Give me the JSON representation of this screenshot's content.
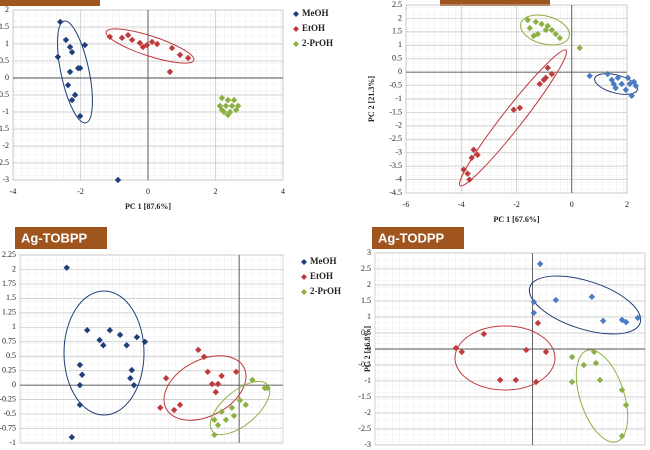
{
  "chart_data": [
    {
      "type": "scatter",
      "x_label": "PC 1 [87.6%]",
      "legend": "upper right",
      "xlim": [
        -4,
        4
      ],
      "xticks": [
        -4,
        -2,
        0,
        2,
        4
      ],
      "ylim": [
        -3,
        2
      ],
      "yticks": [
        -3,
        -2.5,
        -2,
        -1.5,
        -1,
        -0.5,
        0,
        0.5,
        1,
        1.5,
        2
      ],
      "grid": true,
      "series": [
        {
          "name": "MeOH",
          "color": "#1f3f7a",
          "x": [
            -2.6,
            -2.43,
            -2.31,
            -1.87,
            -2.67,
            -2.25,
            -2.01,
            -2.31,
            -2.07,
            -2.37,
            -2.16,
            -2.25,
            -2.01,
            -0.89
          ],
          "values": [
            1.65,
            1.12,
            0.91,
            0.97,
            0.62,
            0.76,
            0.29,
            0.18,
            0.29,
            -0.21,
            -0.5,
            -0.65,
            -1.12,
            -3
          ]
        },
        {
          "name": "EtOH",
          "color": "#c0393b",
          "x": [
            -1.13,
            -0.77,
            -0.59,
            -0.47,
            -0.24,
            -0.03,
            0.12,
            -0.15,
            0.27,
            0.71,
            0.95,
            1.19,
            0.65
          ],
          "values": [
            1.21,
            1.18,
            1.26,
            1.12,
            1.03,
            0.97,
            1.06,
            0.91,
            1,
            0.88,
            0.68,
            0.59,
            0.18
          ]
        },
        {
          "name": "2-PrOH",
          "color": "#8db043",
          "x": [
            2.19,
            2.37,
            2.55,
            2.13,
            2.31,
            2.49,
            2.67,
            2.25,
            2.43,
            2.61,
            2.37,
            2.19
          ],
          "values": [
            -0.59,
            -0.65,
            -0.65,
            -0.82,
            -0.82,
            -0.82,
            -0.82,
            -1,
            -1,
            -0.94,
            -1.09,
            -0.94
          ]
        }
      ]
    },
    {
      "type": "scatter",
      "x_label": "PC 1 [67.6%]",
      "y_label": "PC 2 [21.3%]",
      "xlim": [
        -6,
        2
      ],
      "xticks": [
        -6,
        -4,
        -2,
        0,
        2
      ],
      "ylim": [
        -4.5,
        2.5
      ],
      "yticks": [
        -4.5,
        -4,
        -3.5,
        -3,
        -2.5,
        -2,
        -1.5,
        -1,
        -0.5,
        0,
        0.5,
        1,
        1.5,
        2,
        2.5
      ],
      "grid": true,
      "series": [
        {
          "color": "#4a7cc4",
          "x": [
            0.65,
            1.3,
            1.45,
            1.67,
            1.81,
            2.03,
            2.25,
            1.59,
            1.96,
            2.17,
            2.32,
            1.52,
            2.1
          ],
          "values": [
            -0.14,
            -0.07,
            -0.29,
            -0.21,
            -0.44,
            -0.21,
            -0.36,
            -0.59,
            -0.66,
            -0.88,
            -0.51,
            -0.44,
            -0.44
          ]
        },
        {
          "color": "#c0393b",
          "x": [
            -0.87,
            -0.72,
            -0.94,
            -1.16,
            -1.01,
            -1.88,
            -2.1,
            -3.55,
            -3.62,
            -3.41,
            -3.91,
            -3.77,
            -3.7
          ],
          "values": [
            0.16,
            -0.07,
            -0.21,
            -0.44,
            -0.29,
            -1.33,
            -1.4,
            -2.89,
            -3.19,
            -3.08,
            -3.63,
            -3.78,
            -4.0
          ]
        },
        {
          "color": "#8db043",
          "x": [
            -1.59,
            -1.3,
            -1.09,
            -1.52,
            -0.94,
            -1.23,
            -0.72,
            -0.58,
            -0.43,
            -1.38,
            -0.87,
            0.29
          ],
          "values": [
            1.94,
            1.87,
            1.79,
            1.64,
            1.57,
            1.42,
            1.57,
            1.42,
            1.27,
            1.35,
            1.72,
            0.9
          ]
        }
      ]
    },
    {
      "type": "scatter",
      "title": "Ag-TOBPP",
      "legend": "upper right",
      "xlim": [
        -3,
        0.6
      ],
      "ylim": [
        -1,
        2.25
      ],
      "yticks": [
        -1,
        -0.75,
        -0.5,
        -0.25,
        0,
        0.25,
        0.5,
        0.75,
        1,
        1.25,
        1.5,
        1.75,
        2,
        2.25
      ],
      "grid": true,
      "series": [
        {
          "name": "MeOH",
          "color": "#1f3f7a",
          "x": [
            -2.36,
            -2.08,
            -1.86,
            -1.91,
            -1.77,
            -1.63,
            -1.54,
            -1.4,
            -1.29,
            -2.18,
            -2.15,
            -2.18,
            -1.47,
            -1.49,
            -1.44,
            -2.18,
            -2.29
          ],
          "values": [
            2.03,
            0.95,
            0.69,
            0.78,
            0.95,
            0.87,
            0.69,
            0.83,
            0.75,
            0.35,
            0.18,
            0,
            0.26,
            0.12,
            0,
            -0.34,
            -0.9
          ]
        },
        {
          "name": "EtOH",
          "color": "#c0393b",
          "x": [
            -0.56,
            -0.48,
            -0.43,
            -0.37,
            -0.29,
            -0.24,
            -0.04,
            -0.32,
            -1,
            -1.08,
            -0.89,
            -0.81
          ],
          "values": [
            0.61,
            0.49,
            0.23,
            0.02,
            0.02,
            0.16,
            0.23,
            -0.12,
            0.12,
            -0.39,
            -0.43,
            -0.34
          ]
        },
        {
          "name": "2-PrOH",
          "color": "#8db043",
          "x": [
            0.18,
            0.39,
            0.35,
            0.01,
            -0.1,
            -0.24,
            -0.34,
            -0.29,
            -0.34,
            -0.18,
            -0.07,
            0.09
          ],
          "values": [
            0.09,
            -0.05,
            -0.05,
            -0.26,
            -0.39,
            -0.46,
            -0.6,
            -0.69,
            -0.86,
            -0.6,
            -0.53,
            -0.34
          ]
        }
      ]
    },
    {
      "type": "scatter",
      "title": "Ag-TODPP",
      "y_label": "PC 2 [16.8%]",
      "xlim": [
        -3.5,
        2.5
      ],
      "ylim": [
        -3,
        3
      ],
      "yticks": [
        -3,
        -2.5,
        -2,
        -1.5,
        -1,
        -0.5,
        0,
        0.5,
        1,
        1.5,
        2,
        2.5,
        3
      ],
      "grid": true,
      "series": [
        {
          "color": "#4a7cc4",
          "x": [
            0.17,
            0.03,
            0.52,
            1.32,
            0.03,
            1.57,
            1.99,
            2.08,
            2.34
          ],
          "values": [
            2.66,
            1.47,
            1.53,
            1.63,
            1.13,
            0.88,
            0.91,
            0.84,
            0.97
          ]
        },
        {
          "color": "#c0393b",
          "x": [
            -1.7,
            -1.57,
            -1.08,
            -0.72,
            -0.37,
            -0.14,
            0.12,
            0.3,
            0.08
          ],
          "values": [
            0.03,
            -0.09,
            0.47,
            -0.97,
            -0.97,
            -0.03,
            0.81,
            -0.09,
            -1.03
          ]
        },
        {
          "color": "#8db043",
          "x": [
            0.88,
            1.14,
            1.37,
            1.41,
            1.5,
            0.88,
            1.99,
            2.08,
            1.99
          ],
          "values": [
            -0.25,
            -0.5,
            -0.09,
            -0.44,
            -0.97,
            -1.03,
            -1.28,
            -1.75,
            -2.72
          ]
        }
      ]
    }
  ]
}
